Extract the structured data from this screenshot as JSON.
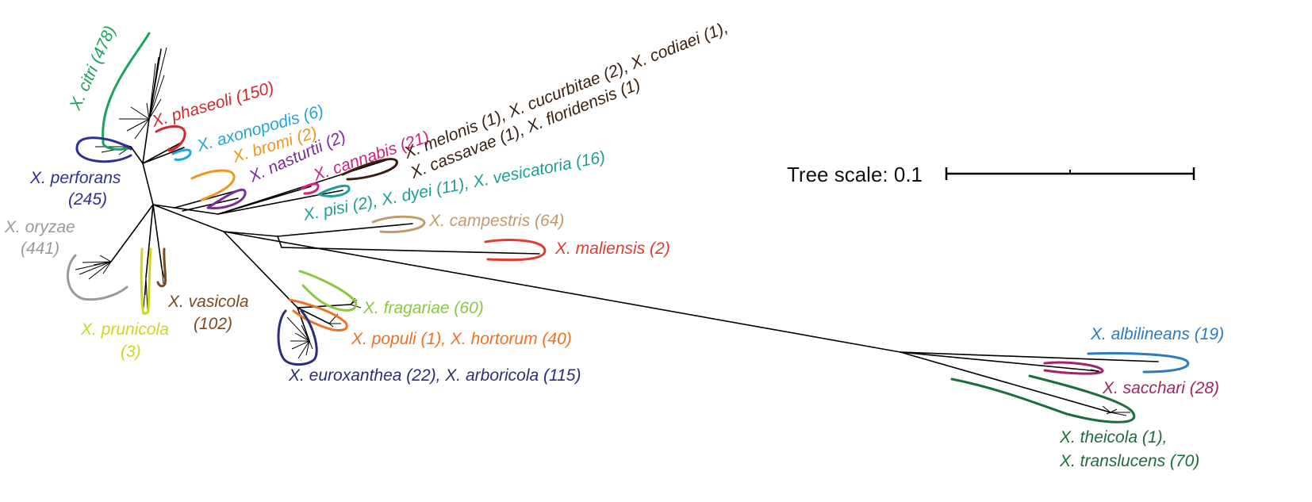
{
  "scale": {
    "label": "Tree scale: 0.1"
  },
  "clades": [
    {
      "id": "citri",
      "text": "X. citri (478)",
      "color": "#1aa35a"
    },
    {
      "id": "phaseoli",
      "text": "X. phaseoli (150)",
      "color": "#d4262c"
    },
    {
      "id": "axonopodis",
      "text": "X. axonopodis (6)",
      "color": "#1ea6d9"
    },
    {
      "id": "bromi",
      "text": "X. bromi (2)",
      "color": "#f0961c"
    },
    {
      "id": "nasturtii",
      "text": "X. nasturtii (2)",
      "color": "#7b2c9a"
    },
    {
      "id": "cannabis",
      "text": "X. cannabis (21)",
      "color": "#d4207f"
    },
    {
      "id": "melonis_line1",
      "text": "X. melonis (1), X. cucurbitae (2), X. codiaei (1),",
      "color": "#3b1f0e"
    },
    {
      "id": "melonis_line2",
      "text": "X. cassavae (1), X. floridensis (1)",
      "color": "#3b1f0e"
    },
    {
      "id": "pisi",
      "text": "X. pisi (2), X. dyei (11), X. vesicatoria (16)",
      "color": "#1c9e99"
    },
    {
      "id": "perforans_line1",
      "text": "X. perforans",
      "color": "#2e3192"
    },
    {
      "id": "perforans_line2",
      "text": "(245)",
      "color": "#2e3192"
    },
    {
      "id": "oryzae_line1",
      "text": "X. oryzae",
      "color": "#9a9a9a"
    },
    {
      "id": "oryzae_line2",
      "text": "(441)",
      "color": "#9a9a9a"
    },
    {
      "id": "campestris",
      "text": "X. campestris (64)",
      "color": "#c29a6b"
    },
    {
      "id": "maliensis",
      "text": "X. maliensis (2)",
      "color": "#e23b2e"
    },
    {
      "id": "vasicola_line1",
      "text": "X. vasicola",
      "color": "#7a4a1e"
    },
    {
      "id": "vasicola_line2",
      "text": "(102)",
      "color": "#7a4a1e"
    },
    {
      "id": "prunicola_line1",
      "text": "X. prunicola",
      "color": "#cfd41c"
    },
    {
      "id": "prunicola_line2",
      "text": "(3)",
      "color": "#cfd41c"
    },
    {
      "id": "fragariae",
      "text": "X. fragariae (60)",
      "color": "#8dc63f"
    },
    {
      "id": "populi",
      "text": "X. populi (1), X. hortorum (40)",
      "color": "#f07021"
    },
    {
      "id": "euroxanthea",
      "text": "X. euroxanthea (22), X. arboricola (115)",
      "color": "#2b2d7a"
    },
    {
      "id": "albilineans",
      "text": "X. albilineans (19)",
      "color": "#2a7bc0"
    },
    {
      "id": "sacchari",
      "text": "X. sacchari (28)",
      "color": "#a3236b"
    },
    {
      "id": "theicola",
      "text": "X. theicola (1),",
      "color": "#1a6e3a"
    },
    {
      "id": "translucens",
      "text": "X. translucens (70)",
      "color": "#1a6e3a"
    }
  ]
}
